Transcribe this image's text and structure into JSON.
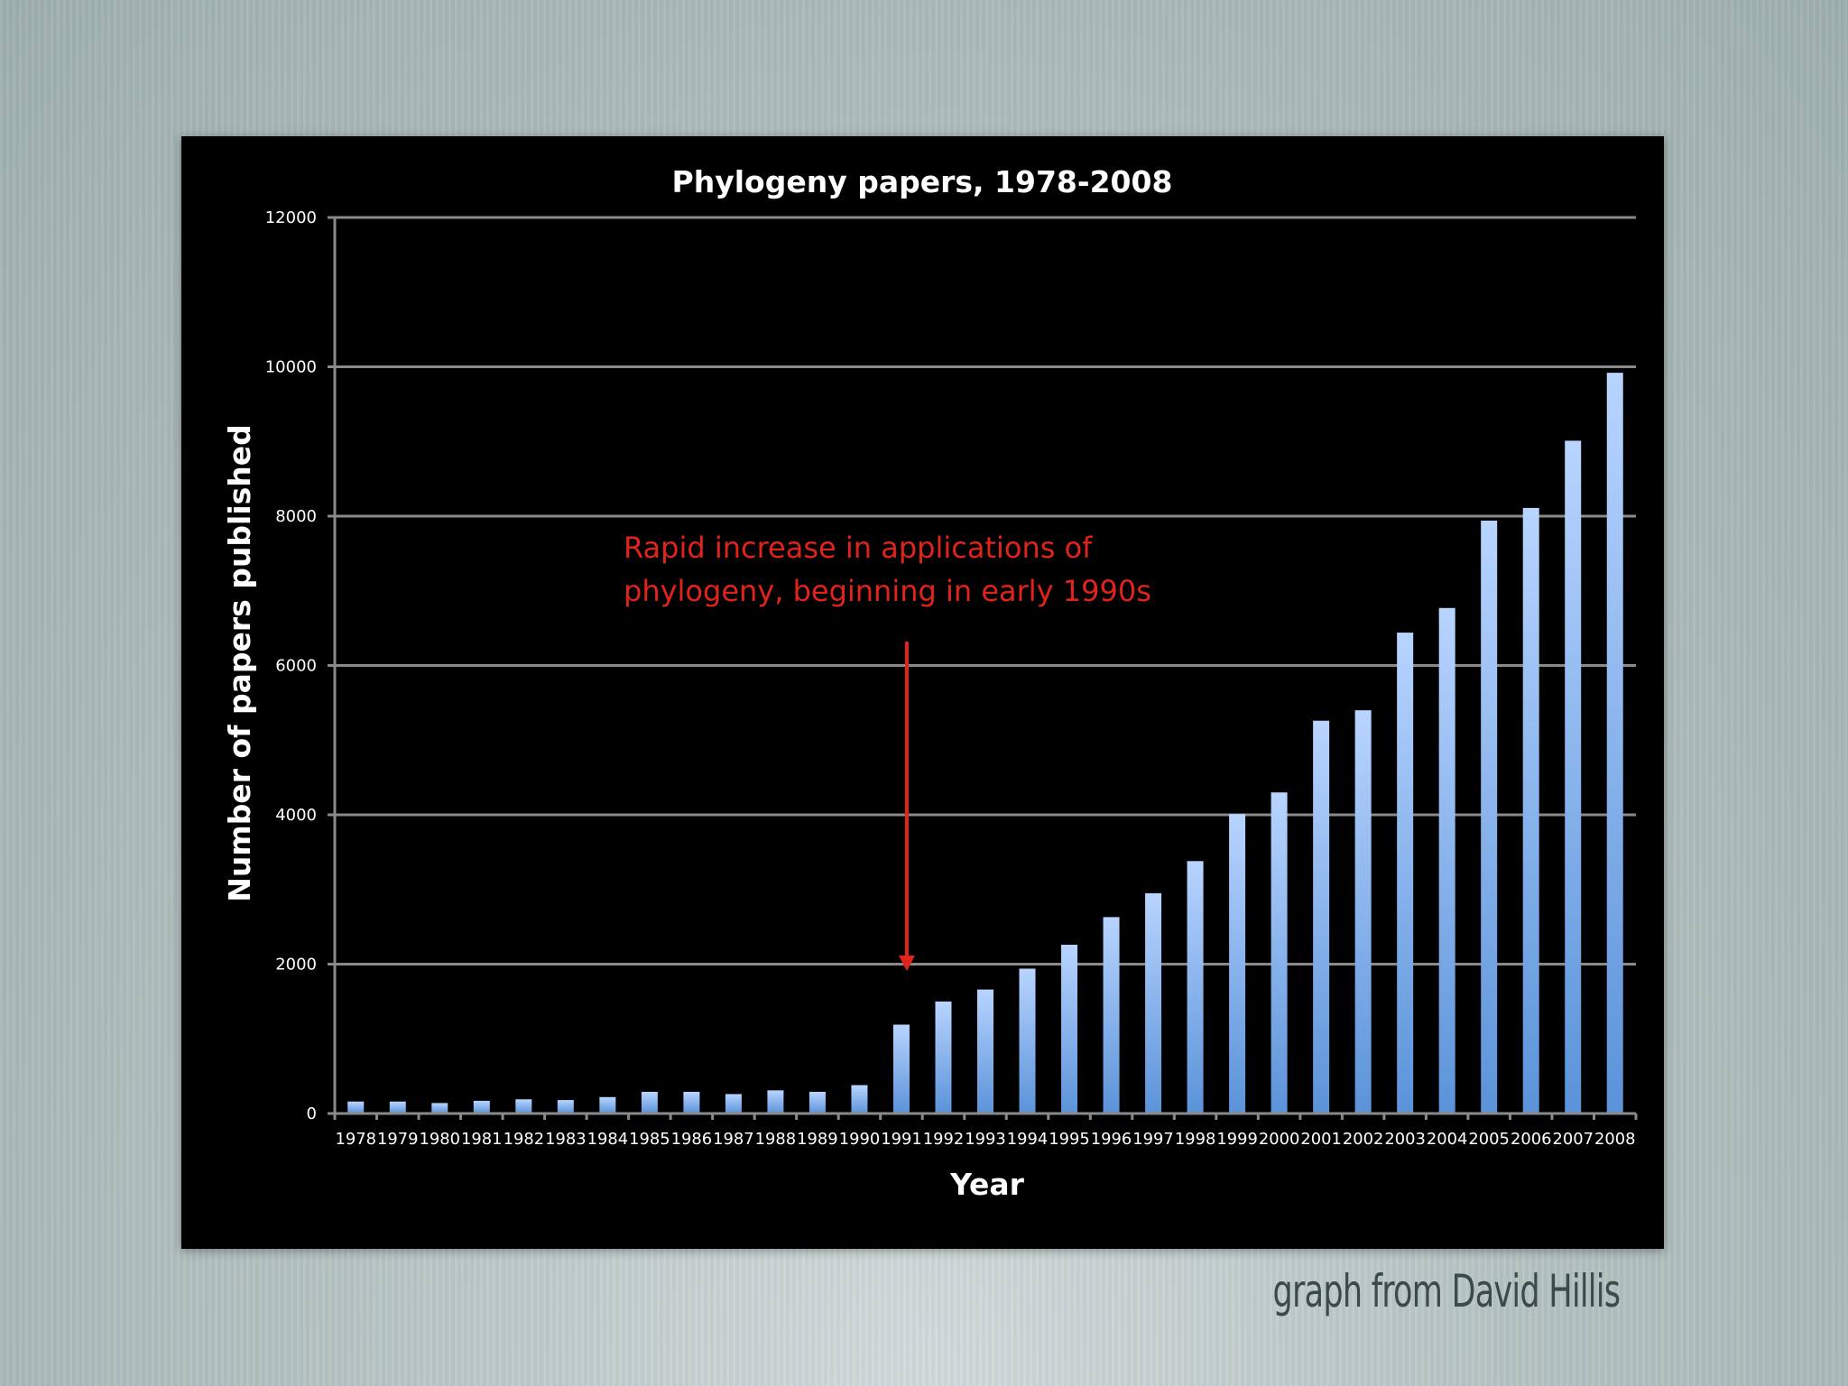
{
  "chart_data": {
    "type": "bar",
    "title": "Phylogeny papers, 1978-2008",
    "xlabel": "Year",
    "ylabel": "Number of papers published",
    "ylim": [
      0,
      12000
    ],
    "yticks": [
      0,
      2000,
      4000,
      6000,
      8000,
      10000,
      12000
    ],
    "grid": true,
    "categories": [
      "1978",
      "1979",
      "1980",
      "1981",
      "1982",
      "1983",
      "1984",
      "1985",
      "1986",
      "1987",
      "1988",
      "1989",
      "1990",
      "1991",
      "1992",
      "1993",
      "1994",
      "1995",
      "1996",
      "1997",
      "1998",
      "1999",
      "2000",
      "2001",
      "2002",
      "2003",
      "2004",
      "2005",
      "2006",
      "2007",
      "2008"
    ],
    "values": [
      160,
      160,
      140,
      170,
      190,
      180,
      220,
      290,
      290,
      260,
      310,
      290,
      380,
      1190,
      1500,
      1660,
      1940,
      2260,
      2630,
      2950,
      3380,
      4010,
      4300,
      5260,
      5400,
      6440,
      6770,
      7940,
      8110,
      9010,
      9920
    ],
    "bar_color_top": "#b8d4ff",
    "bar_color_bottom": "#5b93d9",
    "annotation": {
      "lines": [
        "Rapid increase in applications of",
        "phylogeny, beginning in early 1990s"
      ],
      "color": "#e0231b",
      "arrow_points_to": "1991"
    }
  },
  "credit": "graph from David Hillis"
}
